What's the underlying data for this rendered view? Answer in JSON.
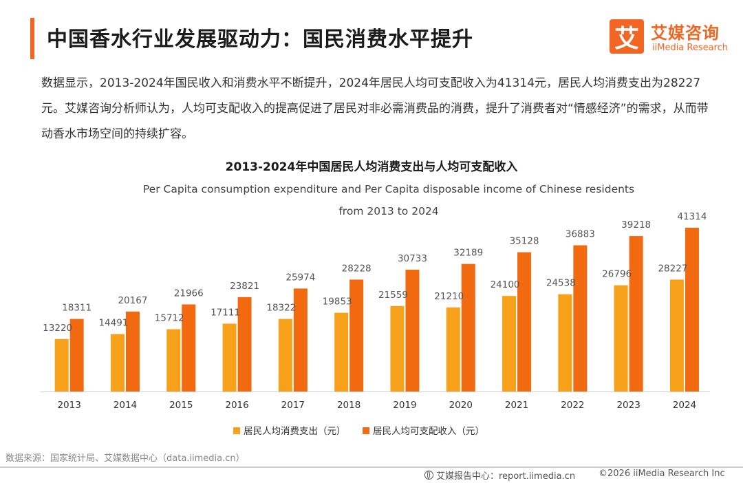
{
  "header": {
    "title": "中国香水行业发展驱动力：国民消费水平提升",
    "logo_mark": "艾",
    "logo_cn": "艾媒咨询",
    "logo_en": "iiMedia Research"
  },
  "intro": "数据显示，2013-2024年国民收入和消费水平不断提升，2024年居民人均可支配收入为41314元，居民人均消费支出为28227元。艾媒咨询分析师认为，人均可支配收入的提高促进了居民对非必需消费品的消费，提升了消费者对“情感经济”的需求，从而带动香水市场空间的持续扩容。",
  "chart_data": {
    "type": "bar",
    "title": "2013-2024年中国居民人均消费支出与人均可支配收入",
    "subtitle_line1": "Per Capita consumption expenditure and Per Capita disposable income of Chinese residents",
    "subtitle_line2": "from 2013 to 2024",
    "categories": [
      "2013",
      "2014",
      "2015",
      "2016",
      "2017",
      "2018",
      "2019",
      "2020",
      "2021",
      "2022",
      "2023",
      "2024"
    ],
    "series": [
      {
        "name": "居民人均消费支出（元）",
        "color": "#f7a11a",
        "values": [
          13220,
          14491,
          15712,
          17111,
          18322,
          19853,
          21559,
          21210,
          24100,
          24538,
          26796,
          28227
        ]
      },
      {
        "name": "居民人均可支配收入（元）",
        "color": "#f26a10",
        "values": [
          18311,
          20167,
          21966,
          23821,
          25974,
          28228,
          30733,
          32189,
          35128,
          36883,
          39218,
          41314
        ]
      }
    ],
    "ylim": [
      0,
      45000
    ],
    "grid": false,
    "legend_position": "bottom-center"
  },
  "footer": {
    "source": "数据来源：国家统计局、艾媒数据中心（data.iimedia.cn）",
    "report": "艾媒报告中心：report.iimedia.cn",
    "copyright": "©2026  iiMedia Research Inc"
  },
  "colors": {
    "accent": "#f26522",
    "consumption": "#f7a11a",
    "income": "#f26a10"
  }
}
